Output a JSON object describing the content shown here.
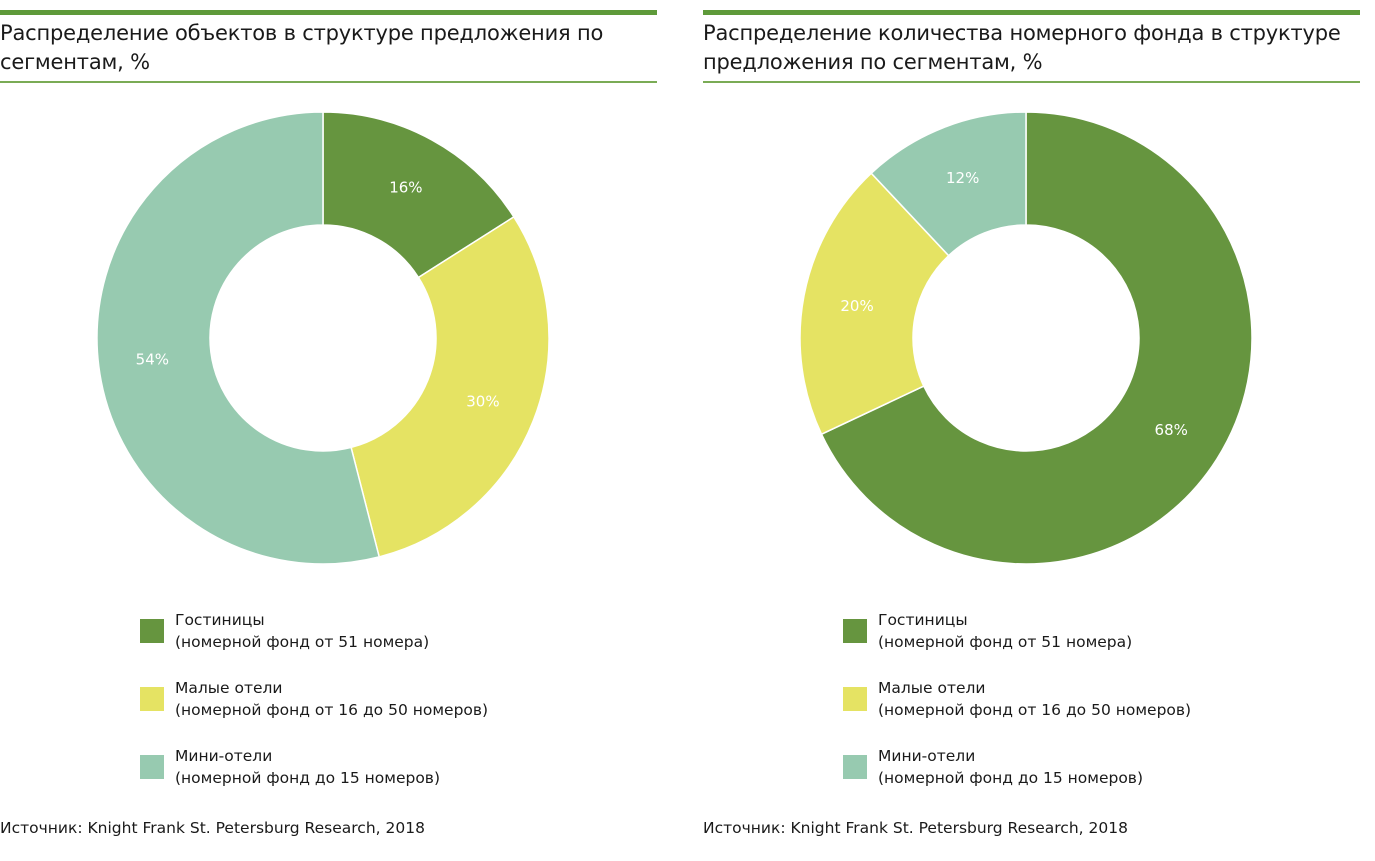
{
  "colors": {
    "hotels": "#66953f",
    "small_hotels": "#e5e363",
    "mini_hotels": "#97cab0",
    "accent": "#5e9a3a"
  },
  "legend": [
    {
      "line1": "Гостиницы",
      "line2": "(номерной фонд от 51 номера)"
    },
    {
      "line1": "Малые отели",
      "line2": "(номерной фонд от 16 до 50 номеров)"
    },
    {
      "line1": "Мини-отели",
      "line2": "(номерной фонд до 15 номеров)"
    }
  ],
  "source": "Источник: Knight Frank St. Petersburg Research, 2018",
  "chart_data": [
    {
      "type": "pie",
      "donut": true,
      "title": "Распределение объектов в структуре предложения по сегментам, %",
      "categories": [
        "Гостиницы",
        "Малые отели",
        "Мини-отели"
      ],
      "values": [
        16,
        30,
        54
      ],
      "labels": [
        "16%",
        "30%",
        "54%"
      ],
      "start": "top",
      "direction": "clockwise",
      "legend_position": "bottom"
    },
    {
      "type": "pie",
      "donut": true,
      "title": "Распределение количества номерного фонда в структуре предложения по сегментам, %",
      "categories": [
        "Гостиницы",
        "Малые отели",
        "Мини-отели"
      ],
      "values": [
        68,
        20,
        12
      ],
      "labels": [
        "68%",
        "20%",
        "12%"
      ],
      "start": "top",
      "direction": "clockwise",
      "legend_position": "bottom"
    }
  ]
}
